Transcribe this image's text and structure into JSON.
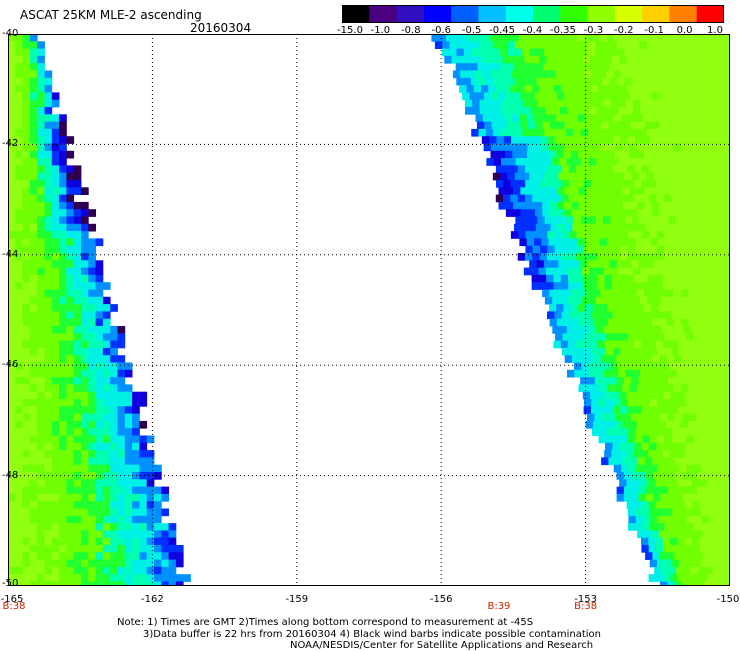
{
  "header": {
    "title": "ASCAT 25KM MLE-2 ascending",
    "date": "20160304"
  },
  "colorbar": {
    "labels": [
      "-15.0",
      "-1.0",
      "-0.8",
      "-0.6",
      "-0.5",
      "-0.45",
      "-0.4",
      "-0.35",
      "-0.3",
      "-0.2",
      "-0.1",
      "0.0",
      "1.0"
    ],
    "colors": [
      "#000000",
      "#4a0080",
      "#3010c0",
      "#0000ff",
      "#0060ff",
      "#00c0ff",
      "#00ffe8",
      "#00ff70",
      "#30ff00",
      "#90ff00",
      "#d8ff00",
      "#ffd000",
      "#ff8000",
      "#ff0000"
    ]
  },
  "map": {
    "lat_labels": [
      "-40",
      "-42",
      "-44",
      "-46",
      "-48",
      "-50"
    ],
    "lon_labels": [
      "-165",
      "-162",
      "-159",
      "-156",
      "-153",
      "-150"
    ],
    "lat_range": [
      -50,
      -40
    ],
    "lon_range": [
      -165,
      -150
    ],
    "grid": "dotted",
    "pass_labels": [
      {
        "text": "B:38",
        "lon": -165
      },
      {
        "text": "B:39",
        "lon": -154.8
      },
      {
        "text": "B:38",
        "lon": -153
      }
    ]
  },
  "notes": [
    "Note: 1) Times are GMT 2)Times along bottom correspond to measurement at -45S",
    "3)Data buffer is 22 hrs from 20160304 4) Black wind barbs indicate possible contamination",
    "NOAA/NESDIS/Center for Satellite Applications and Research"
  ]
}
